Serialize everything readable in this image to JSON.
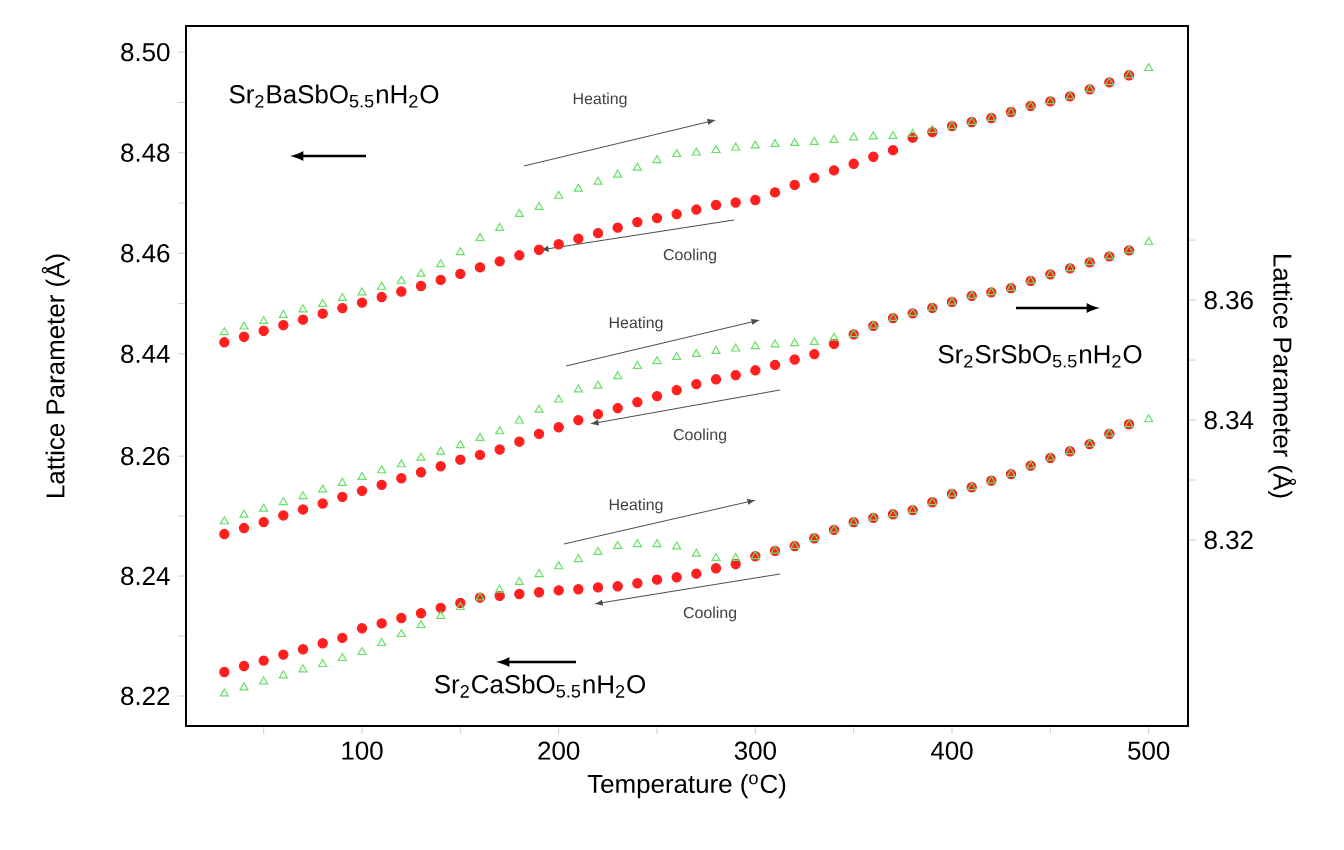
{
  "chart_data": [
    {
      "type": "scatter",
      "ylabel": "Lattice Parameter (Å)",
      "xlim": [
        10.5,
        520
      ],
      "ylim": [
        8.366,
        8.5052
      ],
      "yticks": [
        8.44,
        {
          "value": 8.45,
          "label": null
        },
        8.46,
        {
          "value": 8.47,
          "label": null
        },
        8.48,
        {
          "value": 8.49,
          "label": null
        },
        {
          "value": 8.5,
          "label": "8.50"
        }
      ],
      "tick_labels": "y",
      "x": [
        30,
        40,
        50,
        60,
        70,
        80,
        90,
        100,
        110,
        120,
        130,
        140,
        150,
        160,
        170,
        180,
        190,
        200,
        210,
        220,
        230,
        240,
        250,
        260,
        270,
        280,
        290,
        300,
        310,
        320,
        330,
        340,
        350,
        360,
        370,
        380,
        390,
        400,
        410,
        420,
        430,
        440,
        450,
        460,
        470,
        480,
        490,
        500
      ],
      "series": [
        {
          "color": "#66e066",
          "marker": "triangle",
          "values": [
            8.4443,
            8.4454,
            8.4465,
            8.4477,
            8.4488,
            8.4499,
            8.4511,
            8.4522,
            8.4533,
            8.4545,
            8.4559,
            8.4578,
            8.4602,
            8.463,
            8.465,
            8.4678,
            8.4692,
            8.4714,
            8.4728,
            8.4742,
            8.4756,
            8.477,
            8.4785,
            8.4797,
            8.48,
            8.4805,
            8.481,
            8.4814,
            8.4817,
            8.4819,
            8.4821,
            8.4825,
            8.483,
            8.4832,
            8.4833,
            8.4837,
            8.4845,
            8.4853,
            8.4861,
            8.4869,
            8.4881,
            8.4893,
            8.4902,
            8.4912,
            8.4926,
            8.494,
            8.4954,
            8.4968
          ]
        },
        {
          "color": "#ff1f1f",
          "marker": "circle",
          "values": [
            8.4423,
            8.4434,
            8.4446,
            8.4457,
            8.4468,
            8.448,
            8.4491,
            8.4502,
            8.4513,
            8.4524,
            8.4535,
            8.4547,
            8.4559,
            8.4572,
            8.4584,
            8.4596,
            8.4607,
            8.4618,
            8.4629,
            8.464,
            8.4651,
            8.4662,
            8.467,
            8.4678,
            8.4687,
            8.4696,
            8.4701,
            8.4706,
            8.4721,
            8.4736,
            8.475,
            8.4765,
            8.4778,
            8.4792,
            8.4805,
            8.483,
            8.4841,
            8.4853,
            8.4861,
            8.4869,
            8.4881,
            8.4893,
            8.4902,
            8.4912,
            8.4926,
            8.494,
            8.4954,
            null
          ]
        }
      ],
      "annotations": [
        "Sr$_{2}$BaSbO$_{5.5}$nH$_{2}$O",
        "Heating",
        "Cooling"
      ]
    },
    {
      "type": "scatter",
      "y2label": "Lattice Parameter (Å)",
      "xlim": [
        10.5,
        520
      ],
      "y2lim": [
        8.289,
        8.4057
      ],
      "y2ticks": [
        8.32,
        {
          "value": 8.33,
          "label": null
        },
        8.34,
        {
          "value": 8.35,
          "label": null
        },
        8.36,
        {
          "value": 8.37,
          "label": null
        }
      ],
      "tick_labels": "y",
      "x": [
        30,
        40,
        50,
        60,
        70,
        80,
        90,
        100,
        110,
        120,
        130,
        140,
        150,
        160,
        170,
        180,
        190,
        200,
        210,
        220,
        230,
        240,
        250,
        260,
        270,
        280,
        290,
        300,
        310,
        320,
        330,
        340,
        350,
        360,
        370,
        380,
        390,
        400,
        410,
        420,
        430,
        440,
        450,
        460,
        470,
        480,
        490,
        500
      ],
      "series": [
        {
          "color": "#66e066",
          "marker": "triangle",
          "axis": "y2",
          "values": [
            8.3231,
            8.3242,
            8.3252,
            8.3263,
            8.3273,
            8.3284,
            8.3295,
            8.3305,
            8.3316,
            8.3326,
            8.3337,
            8.3347,
            8.3358,
            8.337,
            8.3381,
            8.3399,
            8.3417,
            8.3434,
            8.3451,
            8.3457,
            8.3473,
            8.349,
            8.3498,
            8.3505,
            8.351,
            8.3515,
            8.3519,
            8.3523,
            8.3526,
            8.3528,
            8.353,
            8.3537,
            8.3543,
            8.3557,
            8.357,
            8.3578,
            8.3587,
            8.3597,
            8.3607,
            8.3613,
            8.362,
            8.3632,
            8.3643,
            8.3653,
            8.3663,
            8.3673,
            8.3683,
            8.3697
          ]
        },
        {
          "color": "#ff1f1f",
          "marker": "circle",
          "axis": "y2",
          "values": [
            8.321,
            8.322,
            8.323,
            8.3241,
            8.3251,
            8.3261,
            8.3272,
            8.3282,
            8.3292,
            8.3303,
            8.3313,
            8.3323,
            8.3334,
            8.3342,
            8.3351,
            8.3364,
            8.3377,
            8.3388,
            8.34,
            8.341,
            8.342,
            8.343,
            8.344,
            8.345,
            8.346,
            8.3468,
            8.3475,
            8.3483,
            8.3492,
            8.3501,
            8.351,
            8.3527,
            8.3543,
            8.3557,
            8.357,
            8.3578,
            8.3587,
            8.3597,
            8.3607,
            8.3613,
            8.362,
            8.3632,
            8.3643,
            8.3653,
            8.3663,
            8.3673,
            8.3683,
            null
          ]
        }
      ],
      "annotations": [
        "Sr$_{2}$SrSbO$_{5.5}$nH$_{2}$O",
        "Heating",
        "Cooling"
      ]
    },
    {
      "type": "scatter",
      "xlabel": "Temperature ($^{o}$C)",
      "xlim": [
        10.5,
        520
      ],
      "xticks": [
        {
          "value": 50,
          "label": null
        },
        100,
        {
          "value": 150,
          "label": null
        },
        200,
        {
          "value": 250,
          "label": null
        },
        300,
        {
          "value": 350,
          "label": null
        },
        400,
        {
          "value": 450,
          "label": null
        },
        500
      ],
      "ylim": [
        8.215,
        8.3317
      ],
      "yticks": [
        8.22,
        {
          "value": 8.23,
          "label": null
        },
        8.24,
        {
          "value": 8.25,
          "label": null
        },
        8.26
      ],
      "x": [
        30,
        40,
        50,
        60,
        70,
        80,
        90,
        100,
        110,
        120,
        130,
        140,
        150,
        160,
        170,
        180,
        190,
        200,
        210,
        220,
        230,
        240,
        250,
        260,
        270,
        280,
        290,
        300,
        310,
        320,
        330,
        340,
        350,
        360,
        370,
        380,
        390,
        400,
        410,
        420,
        430,
        440,
        450,
        460,
        470,
        480,
        490,
        500
      ],
      "series": [
        {
          "color": "#66e066",
          "marker": "triangle",
          "values": [
            8.2204,
            8.2214,
            8.2224,
            8.2234,
            8.2244,
            8.2253,
            8.2263,
            8.2273,
            8.2288,
            8.2303,
            8.2318,
            8.2333,
            8.2348,
            8.2364,
            8.2377,
            8.239,
            8.2403,
            8.2416,
            8.2428,
            8.244,
            8.245,
            8.2453,
            8.2453,
            8.2449,
            8.2437,
            8.243,
            8.243,
            8.2433,
            8.2442,
            8.245,
            8.2463,
            8.2477,
            8.249,
            8.2497,
            8.2503,
            8.251,
            8.2523,
            8.2537,
            8.2548,
            8.2559,
            8.257,
            8.2584,
            8.2597,
            8.2608,
            8.262,
            8.2637,
            8.2653,
            8.2661
          ]
        },
        {
          "color": "#ff1f1f",
          "marker": "circle",
          "values": [
            8.224,
            8.225,
            8.2259,
            8.2269,
            8.2278,
            8.2288,
            8.2297,
            8.2313,
            8.2321,
            8.233,
            8.2338,
            8.2347,
            8.2355,
            8.2364,
            8.2367,
            8.237,
            8.2373,
            8.2376,
            8.2378,
            8.2381,
            8.2383,
            8.2388,
            8.2394,
            8.2398,
            8.2404,
            8.2413,
            8.242,
            8.2433,
            8.2442,
            8.245,
            8.2463,
            8.2477,
            8.249,
            8.2497,
            8.2503,
            8.251,
            8.2523,
            8.2537,
            8.2548,
            8.2559,
            8.257,
            8.2584,
            8.2597,
            8.2608,
            8.262,
            8.2637,
            8.2653,
            null
          ]
        }
      ],
      "annotations": [
        "Sr$_{2}$CaSbO$_{5.5}$nH$_{2}$O",
        "Heating",
        "Cooling"
      ]
    }
  ]
}
